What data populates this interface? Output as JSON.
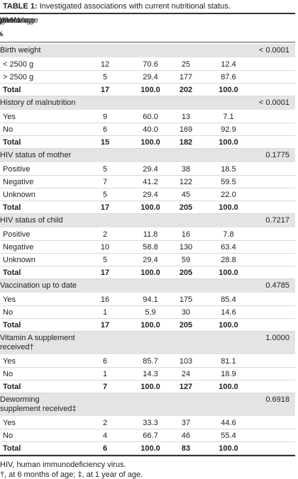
{
  "caption": {
    "label": "TABLE 1:",
    "text": "Investigated associations with current nutritional status."
  },
  "table": {
    "header": {
      "variable": "Variable",
      "underweight": "Underweight for age",
      "normal": "Normal weight for age",
      "p_value": "p-value"
    },
    "subheader": [
      "n",
      "%",
      "n",
      "%"
    ],
    "sections": [
      {
        "title": [
          "Birth weight"
        ],
        "p_value": "< 0.0001",
        "rows": [
          [
            "< 2500 g",
            "12",
            "70.6",
            "25",
            "12.4"
          ],
          [
            "> 2500 g",
            "5",
            "29.4",
            "177",
            "87.6"
          ],
          [
            "Total",
            "17",
            "100.0",
            "202",
            "100.0"
          ]
        ]
      },
      {
        "title": [
          "History of malnutrition"
        ],
        "p_value": "< 0.0001",
        "rows": [
          [
            "Yes",
            "9",
            "60.0",
            "13",
            "7.1"
          ],
          [
            "No",
            "6",
            "40.0",
            "169",
            "92.9"
          ],
          [
            "Total",
            "15",
            "100.0",
            "182",
            "100.0"
          ]
        ]
      },
      {
        "title": [
          "HIV status of mother"
        ],
        "p_value": "0.1775",
        "rows": [
          [
            "Positive",
            "5",
            "29.4",
            "38",
            "18.5"
          ],
          [
            "Negative",
            "7",
            "41.2",
            "122",
            "59.5"
          ],
          [
            "Unknown",
            "5",
            "29.4",
            "45",
            "22.0"
          ],
          [
            "Total",
            "17",
            "100.0",
            "205",
            "100.0"
          ]
        ]
      },
      {
        "title": [
          "HIV status of child"
        ],
        "p_value": "0.7217",
        "rows": [
          [
            "Positive",
            "2",
            "11.8",
            "16",
            "7.8"
          ],
          [
            "Negative",
            "10",
            "58.8",
            "130",
            "63.4"
          ],
          [
            "Unknown",
            "5",
            "29.4",
            "59",
            "28.8"
          ],
          [
            "Total",
            "17",
            "100.0",
            "205",
            "100.0"
          ]
        ]
      },
      {
        "title": [
          "Vaccination up to date"
        ],
        "p_value": "0.4785",
        "rows": [
          [
            "Yes",
            "16",
            "94.1",
            "175",
            "85.4"
          ],
          [
            "No",
            "1",
            "5.9",
            "30",
            "14.6"
          ],
          [
            "Total",
            "17",
            "100.0",
            "205",
            "100.0"
          ]
        ]
      },
      {
        "title": [
          "Vitamin A supplement",
          "received†"
        ],
        "p_value": "1.0000",
        "rows": [
          [
            "Yes",
            "6",
            "85.7",
            "103",
            "81.1"
          ],
          [
            "No",
            "1",
            "14.3",
            "24",
            "18.9"
          ],
          [
            "Total",
            "7",
            "100.0",
            "127",
            "100.0"
          ]
        ]
      },
      {
        "title": [
          "Deworming",
          "supplement received‡"
        ],
        "p_value": "0.6918",
        "rows": [
          [
            "Yes",
            "2",
            "33.3",
            "37",
            "44.6"
          ],
          [
            "No",
            "4",
            "66.7",
            "46",
            "55.4"
          ],
          [
            "Total",
            "6",
            "100.0",
            "83",
            "100.0"
          ]
        ]
      }
    ]
  },
  "footnotes": [
    "HIV, human immunodeficiency virus.",
    "†, at 6 months of age; ‡, at 1 year of age."
  ]
}
